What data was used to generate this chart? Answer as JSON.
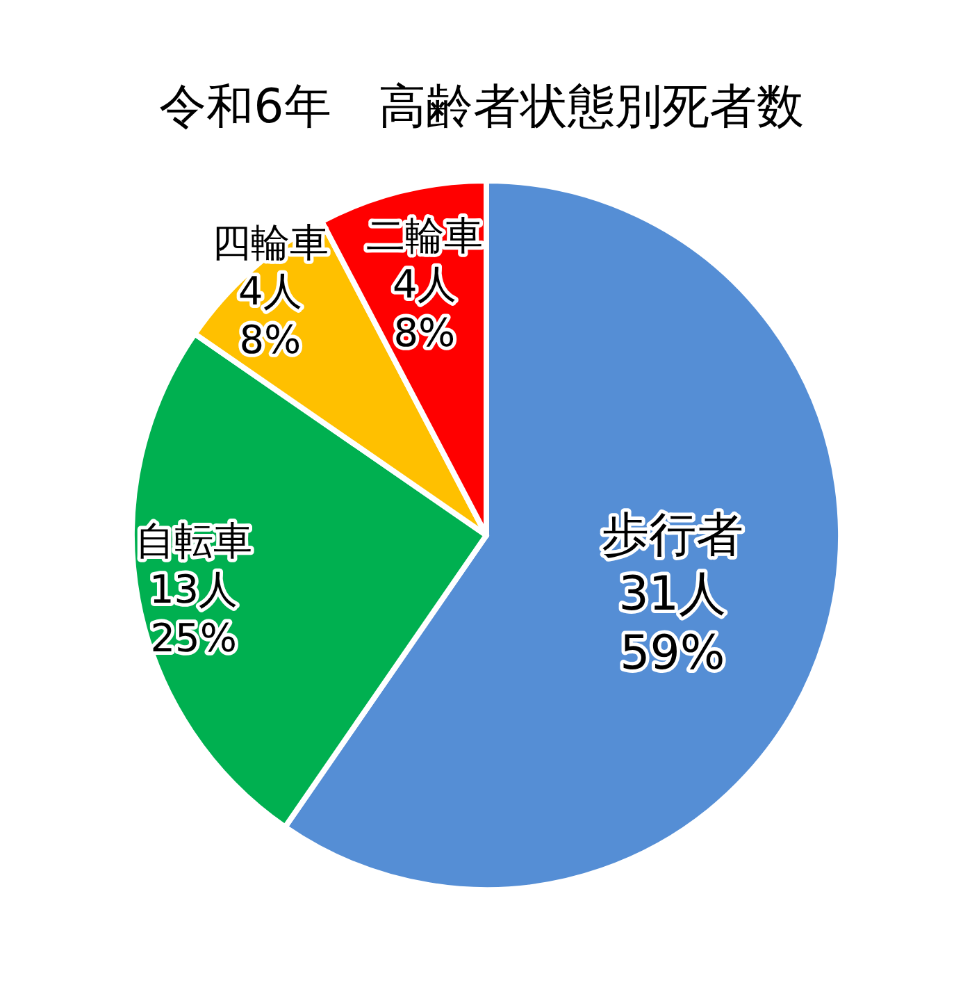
{
  "chart_data": {
    "type": "pie",
    "title": "令和6年　高齢者状態別死者数",
    "categories": [
      "歩行者",
      "自転車",
      "四輪車",
      "二輪車"
    ],
    "values": [
      31,
      13,
      4,
      4
    ],
    "colors": [
      "#558ed5",
      "#00b050",
      "#ffc000",
      "#ff0000"
    ],
    "value_labels": [
      "31人\n59%",
      "13人\n25%",
      "4人\n8%",
      "4人\n8%"
    ]
  }
}
